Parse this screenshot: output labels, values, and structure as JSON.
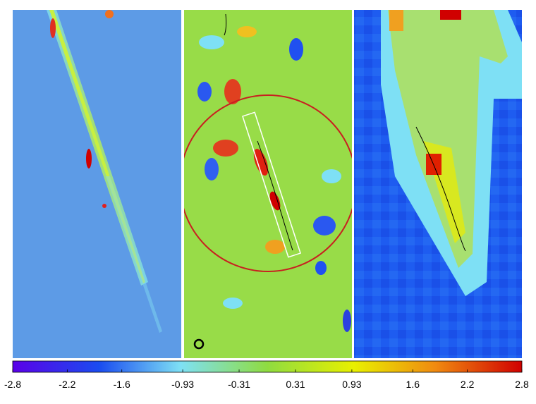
{
  "colorbar": {
    "range": [
      -2.8,
      2.8
    ],
    "ticks": [
      -2.8,
      -2.2,
      -1.6,
      -0.93,
      -0.31,
      0.31,
      0.93,
      1.6,
      2.2,
      2.8
    ]
  }
}
